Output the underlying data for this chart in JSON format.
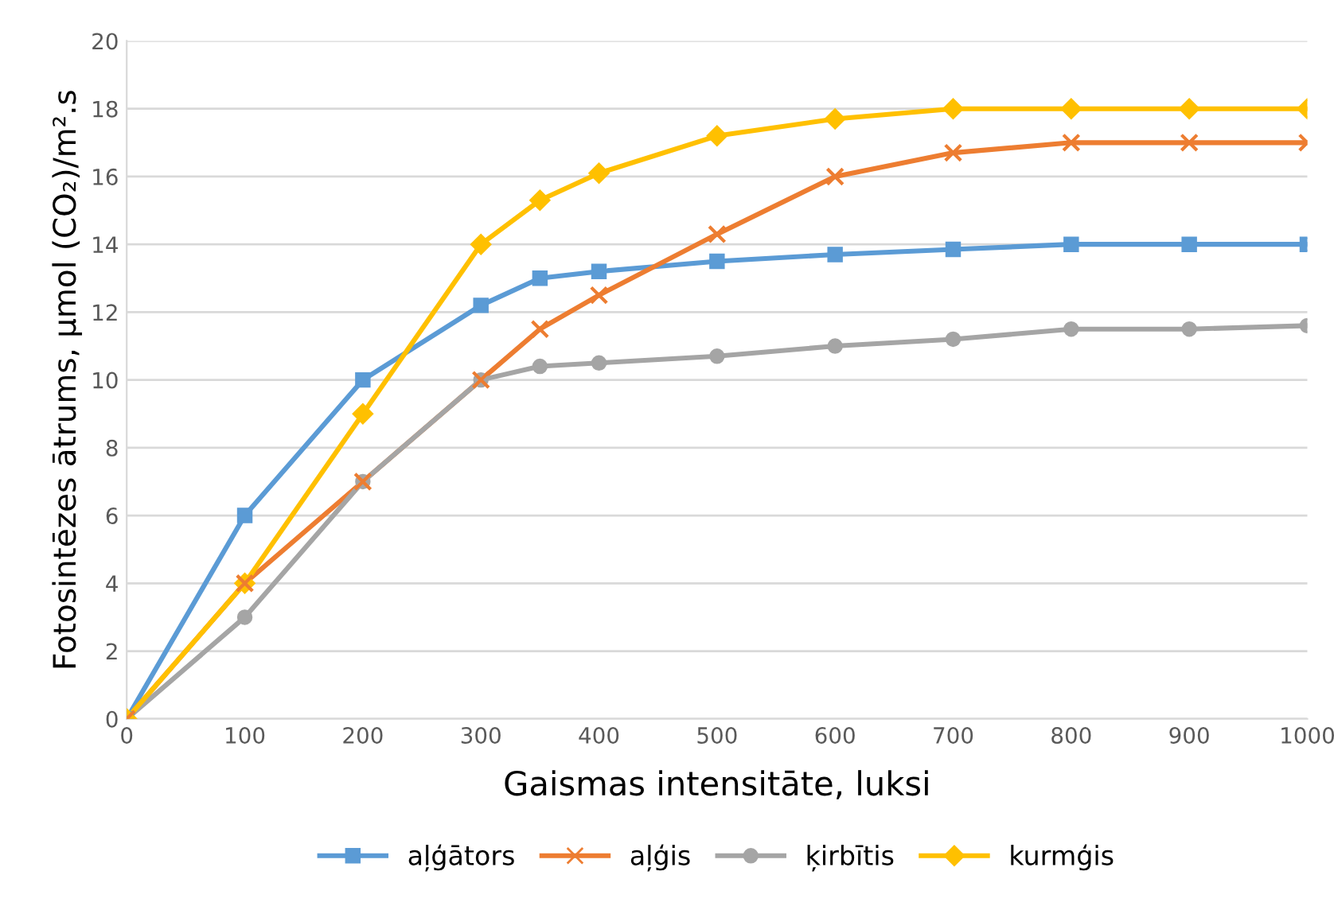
{
  "chart_data": {
    "type": "line",
    "xlabel": "Gaismas intensitāte, luksi",
    "ylabel": "Fotosintēzes ātrums, µmol (CO₂)/m².s",
    "x": [
      0,
      100,
      200,
      300,
      350,
      400,
      500,
      600,
      700,
      800,
      900,
      1000
    ],
    "series": [
      {
        "name": "aļģātors",
        "color": "#5b9bd5",
        "marker": "square",
        "values": [
          0,
          6,
          10,
          12.2,
          13,
          13.2,
          13.5,
          13.7,
          13.85,
          14,
          14,
          14
        ]
      },
      {
        "name": "aļģis",
        "color": "#ed7d31",
        "marker": "cross",
        "values": [
          0,
          4,
          7,
          10,
          11.5,
          12.5,
          14.3,
          16,
          16.7,
          17,
          17,
          17
        ]
      },
      {
        "name": "ķirbītis",
        "color": "#a5a5a5",
        "marker": "circle",
        "values": [
          0,
          3,
          7,
          10,
          10.4,
          10.5,
          10.7,
          11,
          11.2,
          11.5,
          11.5,
          11.6
        ]
      },
      {
        "name": "kurmģis",
        "color": "#ffc000",
        "marker": "diamond",
        "values": [
          0,
          4,
          9,
          14,
          15.3,
          16.1,
          17.2,
          17.7,
          18,
          18,
          18,
          18
        ]
      }
    ],
    "xlim": [
      0,
      1000
    ],
    "xticks": [
      0,
      100,
      200,
      300,
      400,
      500,
      600,
      700,
      800,
      900,
      1000
    ],
    "ylim": [
      0,
      20
    ],
    "yticks": [
      0,
      2,
      4,
      6,
      8,
      10,
      12,
      14,
      16,
      18,
      20
    ],
    "grid": "y",
    "legend": "bottom",
    "line_style": "solid"
  }
}
